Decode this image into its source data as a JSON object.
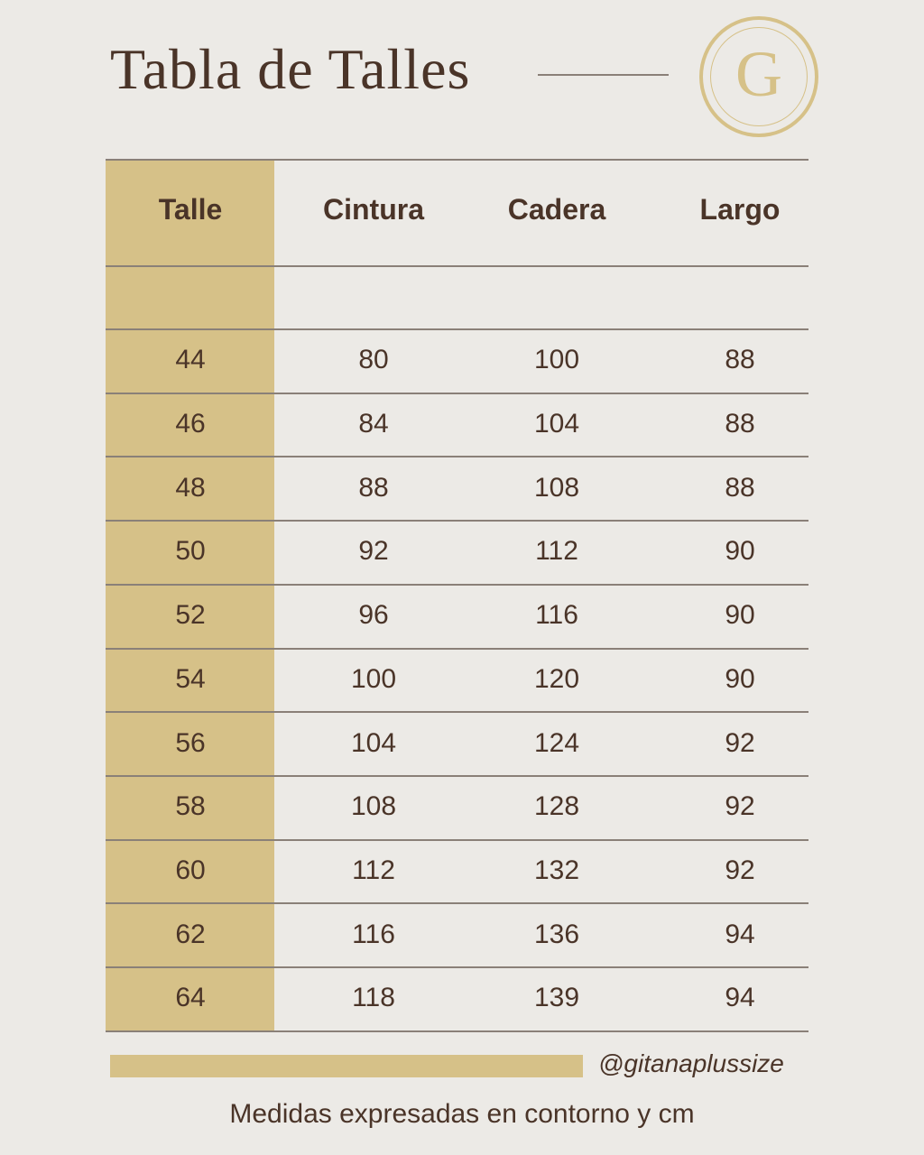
{
  "title": "Tabla de Talles",
  "logo_letter": "G",
  "colors": {
    "background": "#ECEAE6",
    "gold": "#D6C188",
    "text": "#4A3428",
    "rule": "#8A8078"
  },
  "table": {
    "headers": [
      "Talle",
      "Cintura",
      "Cadera",
      "Largo"
    ],
    "rows": [
      [
        "44",
        "80",
        "100",
        "88"
      ],
      [
        "46",
        "84",
        "104",
        "88"
      ],
      [
        "48",
        "88",
        "108",
        "88"
      ],
      [
        "50",
        "92",
        "112",
        "90"
      ],
      [
        "52",
        "96",
        "116",
        "90"
      ],
      [
        "54",
        "100",
        "120",
        "90"
      ],
      [
        "56",
        "104",
        "124",
        "92"
      ],
      [
        "58",
        "108",
        "128",
        "92"
      ],
      [
        "60",
        "112",
        "132",
        "92"
      ],
      [
        "62",
        "116",
        "136",
        "94"
      ],
      [
        "64",
        "118",
        "139",
        "94"
      ]
    ]
  },
  "footer": {
    "handle": "@gitanaplussize",
    "note": "Medidas expresadas en contorno y cm"
  }
}
